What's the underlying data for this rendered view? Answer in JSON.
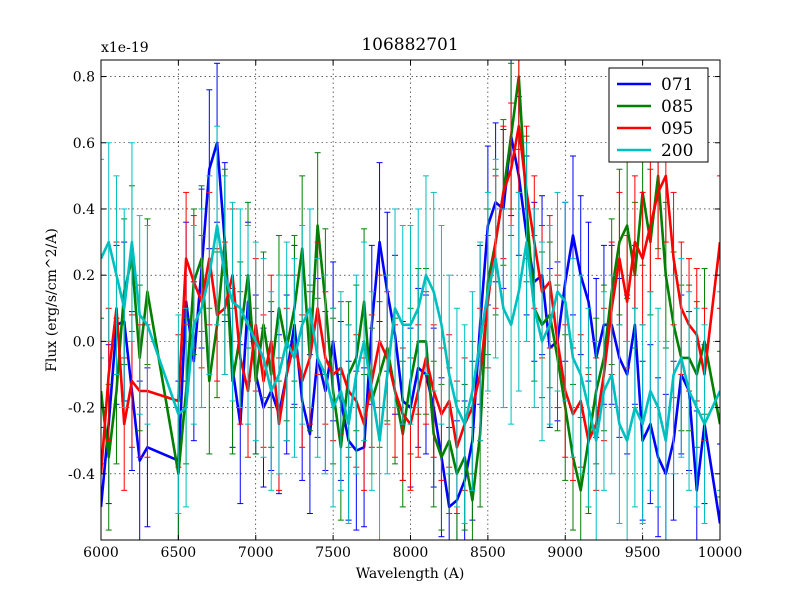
{
  "chart_data": {
    "type": "line",
    "title": "106882701",
    "xlabel": "Wavelength (A)",
    "ylabel": "Flux (erg/s/cm^2/A)",
    "y_multiplier": "x1e-19",
    "xlim": [
      6000,
      10000
    ],
    "ylim": [
      -0.6,
      0.85
    ],
    "xticks": [
      "6000",
      "6500",
      "7000",
      "7500",
      "8000",
      "8500",
      "9000",
      "9500",
      "10000"
    ],
    "yticks": [
      "-0.4",
      "-0.2",
      "0.0",
      "0.2",
      "0.4",
      "0.6",
      "0.8"
    ],
    "ytick_values": [
      -0.4,
      -0.2,
      0.0,
      0.2,
      0.4,
      0.6,
      0.8
    ],
    "grid": true,
    "legend": "top-right",
    "series": [
      {
        "name": "071",
        "color": "#0000ff",
        "errorbar": 0.24,
        "points": [
          [
            6000,
            -0.5
          ],
          [
            6050,
            -0.25
          ],
          [
            6100,
            0.05
          ],
          [
            6150,
            0.06
          ],
          [
            6200,
            -0.15
          ],
          [
            6250,
            -0.36
          ],
          [
            6300,
            -0.32
          ],
          [
            6500,
            -0.36
          ],
          [
            6550,
            0.12
          ],
          [
            6600,
            -0.06
          ],
          [
            6650,
            0.22
          ],
          [
            6700,
            0.52
          ],
          [
            6750,
            0.6
          ],
          [
            6800,
            0.3
          ],
          [
            6850,
            -0.08
          ],
          [
            6900,
            -0.25
          ],
          [
            6950,
            0.12
          ],
          [
            7000,
            -0.1
          ],
          [
            7050,
            -0.2
          ],
          [
            7100,
            -0.15
          ],
          [
            7150,
            -0.22
          ],
          [
            7200,
            -0.1
          ],
          [
            7250,
            0.05
          ],
          [
            7300,
            -0.18
          ],
          [
            7350,
            -0.28
          ],
          [
            7400,
            -0.05
          ],
          [
            7450,
            -0.15
          ],
          [
            7500,
            0.0
          ],
          [
            7550,
            -0.18
          ],
          [
            7600,
            -0.3
          ],
          [
            7650,
            -0.33
          ],
          [
            7700,
            -0.32
          ],
          [
            7750,
            0.05
          ],
          [
            7800,
            0.3
          ],
          [
            7850,
            0.15
          ],
          [
            7900,
            0.02
          ],
          [
            7950,
            -0.18
          ],
          [
            8000,
            -0.2
          ],
          [
            8050,
            -0.08
          ],
          [
            8100,
            -0.1
          ],
          [
            8150,
            -0.2
          ],
          [
            8200,
            -0.35
          ],
          [
            8250,
            -0.5
          ],
          [
            8300,
            -0.48
          ],
          [
            8350,
            -0.42
          ],
          [
            8400,
            -0.3
          ],
          [
            8450,
            0.05
          ],
          [
            8500,
            0.35
          ],
          [
            8550,
            0.42
          ],
          [
            8600,
            0.4
          ],
          [
            8650,
            0.62
          ],
          [
            8700,
            0.5
          ],
          [
            8750,
            0.32
          ],
          [
            8800,
            0.18
          ],
          [
            8850,
            0.2
          ],
          [
            8900,
            -0.02
          ],
          [
            8950,
            0.0
          ],
          [
            9000,
            0.18
          ],
          [
            9050,
            0.32
          ],
          [
            9100,
            0.2
          ],
          [
            9150,
            0.12
          ],
          [
            9200,
            -0.05
          ],
          [
            9250,
            0.05
          ],
          [
            9300,
            0.05
          ],
          [
            9350,
            -0.05
          ],
          [
            9400,
            -0.1
          ],
          [
            9450,
            0.05
          ],
          [
            9500,
            -0.3
          ],
          [
            9550,
            -0.25
          ],
          [
            9600,
            -0.35
          ],
          [
            9650,
            -0.4
          ],
          [
            9700,
            -0.3
          ],
          [
            9750,
            -0.1
          ],
          [
            9800,
            -0.15
          ],
          [
            9850,
            -0.45
          ],
          [
            9900,
            -0.25
          ],
          [
            10000,
            -0.55
          ]
        ]
      },
      {
        "name": "085",
        "color": "#008000",
        "errorbar": 0.22,
        "points": [
          [
            6000,
            -0.15
          ],
          [
            6050,
            -0.35
          ],
          [
            6100,
            -0.15
          ],
          [
            6150,
            0.15
          ],
          [
            6200,
            0.25
          ],
          [
            6250,
            -0.05
          ],
          [
            6300,
            0.15
          ],
          [
            6500,
            -0.4
          ],
          [
            6550,
            -0.15
          ],
          [
            6600,
            0.18
          ],
          [
            6650,
            0.25
          ],
          [
            6700,
            -0.12
          ],
          [
            6750,
            0.05
          ],
          [
            6800,
            0.3
          ],
          [
            6850,
            -0.12
          ],
          [
            6900,
            0.02
          ],
          [
            6950,
            0.2
          ],
          [
            7000,
            -0.12
          ],
          [
            7050,
            0.05
          ],
          [
            7100,
            -0.1
          ],
          [
            7150,
            0.1
          ],
          [
            7200,
            -0.02
          ],
          [
            7250,
            0.1
          ],
          [
            7300,
            0.28
          ],
          [
            7350,
            -0.05
          ],
          [
            7400,
            0.35
          ],
          [
            7450,
            0.12
          ],
          [
            7500,
            -0.15
          ],
          [
            7550,
            -0.32
          ],
          [
            7600,
            -0.1
          ],
          [
            7650,
            -0.05
          ],
          [
            7700,
            0.12
          ],
          [
            7750,
            -0.18
          ],
          [
            7800,
            -0.1
          ],
          [
            7850,
            -0.02
          ],
          [
            7900,
            -0.15
          ],
          [
            7950,
            -0.28
          ],
          [
            8000,
            -0.12
          ],
          [
            8050,
            0.0
          ],
          [
            8100,
            0.0
          ],
          [
            8150,
            -0.28
          ],
          [
            8200,
            -0.35
          ],
          [
            8250,
            -0.3
          ],
          [
            8300,
            -0.4
          ],
          [
            8350,
            -0.35
          ],
          [
            8400,
            -0.48
          ],
          [
            8450,
            -0.28
          ],
          [
            8500,
            0.18
          ],
          [
            8550,
            0.3
          ],
          [
            8600,
            0.45
          ],
          [
            8650,
            0.62
          ],
          [
            8700,
            0.8
          ],
          [
            8750,
            0.4
          ],
          [
            8800,
            0.1
          ],
          [
            8850,
            0.05
          ],
          [
            8900,
            0.08
          ],
          [
            8950,
            -0.05
          ],
          [
            9000,
            -0.2
          ],
          [
            9050,
            -0.35
          ],
          [
            9100,
            -0.45
          ],
          [
            9150,
            -0.3
          ],
          [
            9200,
            -0.15
          ],
          [
            9250,
            -0.05
          ],
          [
            9300,
            0.15
          ],
          [
            9350,
            0.3
          ],
          [
            9400,
            0.35
          ],
          [
            9450,
            0.2
          ],
          [
            9500,
            0.45
          ],
          [
            9550,
            0.3
          ],
          [
            9600,
            0.5
          ],
          [
            9650,
            0.2
          ],
          [
            9700,
            0.05
          ],
          [
            9750,
            -0.05
          ],
          [
            9800,
            -0.05
          ],
          [
            9850,
            -0.1
          ],
          [
            9900,
            0.0
          ],
          [
            10000,
            -0.25
          ]
        ]
      },
      {
        "name": "095",
        "color": "#ff0000",
        "errorbar": 0.2,
        "points": [
          [
            6000,
            -0.4
          ],
          [
            6050,
            -0.1
          ],
          [
            6100,
            0.1
          ],
          [
            6150,
            -0.25
          ],
          [
            6200,
            -0.12
          ],
          [
            6250,
            -0.15
          ],
          [
            6300,
            -0.15
          ],
          [
            6500,
            -0.18
          ],
          [
            6550,
            0.25
          ],
          [
            6600,
            0.18
          ],
          [
            6650,
            0.12
          ],
          [
            6700,
            0.25
          ],
          [
            6750,
            0.08
          ],
          [
            6800,
            0.1
          ],
          [
            6850,
            0.2
          ],
          [
            6900,
            -0.05
          ],
          [
            6950,
            -0.15
          ],
          [
            7000,
            0.05
          ],
          [
            7050,
            -0.12
          ],
          [
            7100,
            0.0
          ],
          [
            7150,
            -0.25
          ],
          [
            7200,
            -0.1
          ],
          [
            7250,
            0.0
          ],
          [
            7300,
            -0.12
          ],
          [
            7350,
            -0.05
          ],
          [
            7400,
            0.1
          ],
          [
            7450,
            -0.05
          ],
          [
            7500,
            -0.1
          ],
          [
            7550,
            -0.08
          ],
          [
            7600,
            -0.15
          ],
          [
            7650,
            -0.18
          ],
          [
            7700,
            -0.25
          ],
          [
            7750,
            -0.12
          ],
          [
            7800,
            0.0
          ],
          [
            7850,
            -0.05
          ],
          [
            7900,
            -0.15
          ],
          [
            7950,
            -0.22
          ],
          [
            8000,
            -0.25
          ],
          [
            8050,
            -0.15
          ],
          [
            8100,
            -0.05
          ],
          [
            8150,
            -0.15
          ],
          [
            8200,
            -0.22
          ],
          [
            8250,
            -0.18
          ],
          [
            8300,
            -0.32
          ],
          [
            8350,
            -0.25
          ],
          [
            8400,
            -0.2
          ],
          [
            8450,
            -0.1
          ],
          [
            8500,
            0.12
          ],
          [
            8550,
            0.3
          ],
          [
            8600,
            0.45
          ],
          [
            8650,
            0.52
          ],
          [
            8700,
            0.65
          ],
          [
            8750,
            0.45
          ],
          [
            8800,
            0.3
          ],
          [
            8850,
            0.15
          ],
          [
            8900,
            0.18
          ],
          [
            8950,
            0.0
          ],
          [
            9000,
            -0.15
          ],
          [
            9050,
            -0.22
          ],
          [
            9100,
            -0.18
          ],
          [
            9150,
            -0.3
          ],
          [
            9200,
            -0.25
          ],
          [
            9250,
            -0.1
          ],
          [
            9300,
            0.1
          ],
          [
            9350,
            0.25
          ],
          [
            9400,
            0.12
          ],
          [
            9450,
            0.3
          ],
          [
            9500,
            0.25
          ],
          [
            9550,
            0.35
          ],
          [
            9600,
            0.45
          ],
          [
            9650,
            0.5
          ],
          [
            9700,
            0.25
          ],
          [
            9750,
            0.1
          ],
          [
            9800,
            0.05
          ],
          [
            9850,
            0.02
          ],
          [
            9900,
            -0.1
          ],
          [
            10000,
            0.3
          ]
        ]
      },
      {
        "name": "200",
        "color": "#00bfbf",
        "errorbar": 0.3,
        "points": [
          [
            6000,
            0.25
          ],
          [
            6050,
            0.3
          ],
          [
            6100,
            0.2
          ],
          [
            6150,
            0.1
          ],
          [
            6200,
            0.3
          ],
          [
            6250,
            0.08
          ],
          [
            6300,
            0.05
          ],
          [
            6500,
            -0.22
          ],
          [
            6550,
            -0.2
          ],
          [
            6600,
            0.05
          ],
          [
            6650,
            0.1
          ],
          [
            6700,
            0.2
          ],
          [
            6750,
            0.35
          ],
          [
            6800,
            0.2
          ],
          [
            6850,
            0.12
          ],
          [
            6900,
            0.1
          ],
          [
            6950,
            0.05
          ],
          [
            7000,
            0.0
          ],
          [
            7050,
            -0.05
          ],
          [
            7100,
            -0.15
          ],
          [
            7150,
            -0.1
          ],
          [
            7200,
            0.0
          ],
          [
            7250,
            -0.05
          ],
          [
            7300,
            0.05
          ],
          [
            7350,
            0.1
          ],
          [
            7400,
            -0.05
          ],
          [
            7450,
            -0.1
          ],
          [
            7500,
            -0.2
          ],
          [
            7550,
            -0.15
          ],
          [
            7600,
            -0.25
          ],
          [
            7650,
            -0.1
          ],
          [
            7700,
            0.0
          ],
          [
            7750,
            -0.15
          ],
          [
            7800,
            -0.3
          ],
          [
            7850,
            -0.1
          ],
          [
            7900,
            0.1
          ],
          [
            7950,
            0.05
          ],
          [
            8000,
            0.05
          ],
          [
            8050,
            0.1
          ],
          [
            8100,
            0.2
          ],
          [
            8150,
            0.15
          ],
          [
            8200,
            0.05
          ],
          [
            8250,
            -0.1
          ],
          [
            8300,
            -0.2
          ],
          [
            8350,
            -0.25
          ],
          [
            8400,
            -0.15
          ],
          [
            8450,
            0.0
          ],
          [
            8500,
            0.15
          ],
          [
            8550,
            0.25
          ],
          [
            8600,
            0.1
          ],
          [
            8650,
            0.05
          ],
          [
            8700,
            0.15
          ],
          [
            8750,
            0.3
          ],
          [
            8800,
            0.1
          ],
          [
            8850,
            0.0
          ],
          [
            8900,
            0.05
          ],
          [
            8950,
            0.15
          ],
          [
            9000,
            0.12
          ],
          [
            9050,
            -0.05
          ],
          [
            9100,
            -0.1
          ],
          [
            9150,
            -0.2
          ],
          [
            9200,
            -0.3
          ],
          [
            9250,
            -0.15
          ],
          [
            9300,
            -0.1
          ],
          [
            9350,
            -0.25
          ],
          [
            9400,
            -0.3
          ],
          [
            9450,
            -0.2
          ],
          [
            9500,
            -0.25
          ],
          [
            9550,
            -0.15
          ],
          [
            9600,
            -0.2
          ],
          [
            9650,
            -0.3
          ],
          [
            9700,
            -0.1
          ],
          [
            9750,
            -0.05
          ],
          [
            9800,
            -0.15
          ],
          [
            9850,
            -0.2
          ],
          [
            9900,
            -0.25
          ],
          [
            10000,
            -0.15
          ]
        ]
      }
    ]
  }
}
